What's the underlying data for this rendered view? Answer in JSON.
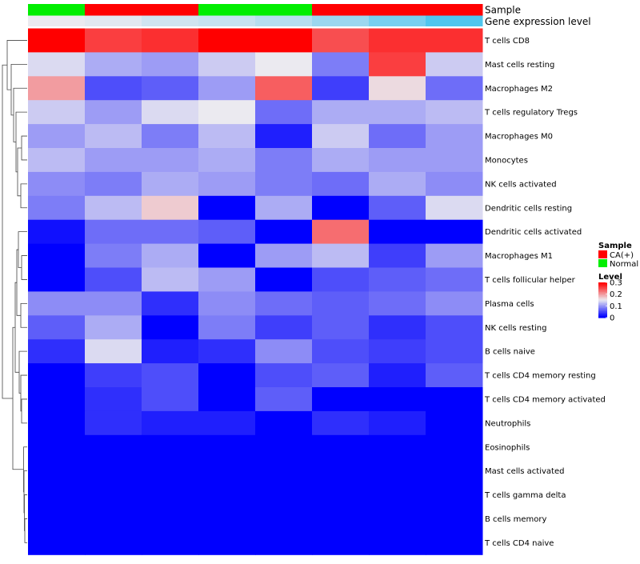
{
  "chart_data": {
    "type": "heatmap",
    "annotation_titles": [
      "Sample",
      "Gene expression level"
    ],
    "columns": [
      {
        "sample": "Normal",
        "expression_level": 0.1
      },
      {
        "sample": "CA(+)",
        "expression_level": 0.12
      },
      {
        "sample": "CA(+)",
        "expression_level": 0.16
      },
      {
        "sample": "Normal",
        "expression_level": 0.18
      },
      {
        "sample": "Normal",
        "expression_level": 0.22
      },
      {
        "sample": "CA(+)",
        "expression_level": 0.28
      },
      {
        "sample": "CA(+)",
        "expression_level": 0.36
      },
      {
        "sample": "CA(+)",
        "expression_level": 0.45
      }
    ],
    "rows": [
      {
        "label": "T cells CD8",
        "values": [
          0.3,
          0.26,
          0.27,
          0.3,
          0.3,
          0.25,
          0.27,
          0.27
        ]
      },
      {
        "label": "Mast cells resting",
        "values": [
          0.14,
          0.11,
          0.1,
          0.13,
          0.15,
          0.08,
          0.26,
          0.13
        ]
      },
      {
        "label": "Macrophages M2",
        "values": [
          0.2,
          0.05,
          0.06,
          0.1,
          0.24,
          0.04,
          0.16,
          0.07
        ]
      },
      {
        "label": "T cells regulatory  Tregs",
        "values": [
          0.13,
          0.1,
          0.14,
          0.15,
          0.07,
          0.11,
          0.11,
          0.12
        ]
      },
      {
        "label": "Macrophages M0",
        "values": [
          0.1,
          0.12,
          0.08,
          0.12,
          0.02,
          0.13,
          0.07,
          0.1
        ]
      },
      {
        "label": "Monocytes",
        "values": [
          0.12,
          0.1,
          0.1,
          0.11,
          0.08,
          0.11,
          0.1,
          0.1
        ]
      },
      {
        "label": "NK cells activated",
        "values": [
          0.09,
          0.08,
          0.11,
          0.1,
          0.08,
          0.07,
          0.11,
          0.09
        ]
      },
      {
        "label": "Dendritic cells resting",
        "values": [
          0.08,
          0.12,
          0.17,
          0.0,
          0.11,
          0.0,
          0.06,
          0.14
        ]
      },
      {
        "label": "Dendritic cells activated",
        "values": [
          0.01,
          0.07,
          0.07,
          0.06,
          0.0,
          0.23,
          0.0,
          0.0
        ]
      },
      {
        "label": "Macrophages M1",
        "values": [
          0.0,
          0.08,
          0.11,
          0.0,
          0.1,
          0.12,
          0.04,
          0.1
        ]
      },
      {
        "label": "T cells follicular helper",
        "values": [
          0.0,
          0.05,
          0.12,
          0.1,
          0.0,
          0.05,
          0.06,
          0.07
        ]
      },
      {
        "label": "Plasma cells",
        "values": [
          0.09,
          0.09,
          0.03,
          0.09,
          0.07,
          0.06,
          0.07,
          0.09
        ]
      },
      {
        "label": "NK cells resting",
        "values": [
          0.06,
          0.11,
          0.0,
          0.08,
          0.04,
          0.06,
          0.03,
          0.05
        ]
      },
      {
        "label": "B cells naive",
        "values": [
          0.03,
          0.14,
          0.02,
          0.03,
          0.09,
          0.05,
          0.04,
          0.05
        ]
      },
      {
        "label": "T cells CD4 memory resting",
        "values": [
          0.0,
          0.04,
          0.05,
          0.0,
          0.05,
          0.06,
          0.02,
          0.06
        ]
      },
      {
        "label": "T cells CD4 memory activated",
        "values": [
          0.0,
          0.03,
          0.05,
          0.0,
          0.06,
          0.0,
          0.0,
          0.0
        ]
      },
      {
        "label": "Neutrophils",
        "values": [
          0.0,
          0.03,
          0.02,
          0.02,
          0.0,
          0.03,
          0.02,
          0.0
        ]
      },
      {
        "label": "Eosinophils",
        "values": [
          0,
          0,
          0,
          0,
          0,
          0,
          0,
          0
        ]
      },
      {
        "label": "Mast cells activated",
        "values": [
          0,
          0,
          0,
          0,
          0,
          0,
          0,
          0
        ]
      },
      {
        "label": "T cells gamma delta",
        "values": [
          0,
          0,
          0,
          0,
          0,
          0,
          0,
          0
        ]
      },
      {
        "label": "B cells memory",
        "values": [
          0,
          0,
          0,
          0,
          0,
          0,
          0,
          0
        ]
      },
      {
        "label": "T cells CD4 naive",
        "values": [
          0,
          0,
          0,
          0,
          0,
          0,
          0,
          0
        ]
      }
    ],
    "color_scale": {
      "min": 0,
      "mid": 0.15,
      "max": 0.3,
      "low_color": "#0000ff",
      "mid_color": "#ebeaf0",
      "high_color": "#ff0000"
    },
    "expression_scale": {
      "min": 0.1,
      "max": 0.45,
      "low_color": "#ebeaf0",
      "high_color": "#4fc6ee"
    },
    "legend": {
      "sample_title": "Sample",
      "sample_entries": [
        {
          "label": "CA(+)",
          "color": "#ff0000"
        },
        {
          "label": "Normal",
          "color": "#00ee00"
        }
      ],
      "level_title": "Level",
      "level_ticks": [
        "0.3",
        "0.2",
        "0.1",
        "0"
      ],
      "level_tick_values": [
        0.3,
        0.2,
        0.1,
        0
      ]
    }
  }
}
